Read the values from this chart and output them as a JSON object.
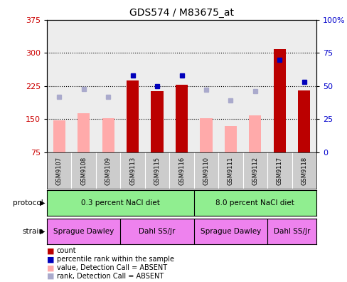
{
  "title": "GDS574 / M83675_at",
  "samples": [
    "GSM9107",
    "GSM9108",
    "GSM9109",
    "GSM9113",
    "GSM9115",
    "GSM9116",
    "GSM9110",
    "GSM9111",
    "GSM9112",
    "GSM9117",
    "GSM9118"
  ],
  "count_values": [
    null,
    null,
    null,
    237,
    213,
    228,
    null,
    null,
    null,
    308,
    215
  ],
  "count_absent": [
    147,
    163,
    152,
    null,
    null,
    null,
    152,
    135,
    158,
    null,
    null
  ],
  "rank_values": [
    null,
    null,
    null,
    58,
    50,
    58,
    null,
    null,
    null,
    70,
    53
  ],
  "rank_absent": [
    42,
    48,
    42,
    null,
    null,
    null,
    47,
    39,
    46,
    null,
    null
  ],
  "ylim_left": [
    75,
    375
  ],
  "ylim_right": [
    0,
    100
  ],
  "yticks_left": [
    75,
    150,
    225,
    300,
    375
  ],
  "yticks_right": [
    0,
    25,
    50,
    75,
    100
  ],
  "ytick_labels_right": [
    "0",
    "25",
    "50",
    "75",
    "100%"
  ],
  "grid_values": [
    150,
    225,
    300
  ],
  "bar_width": 0.5,
  "count_color": "#BB0000",
  "count_absent_color": "#FFAAAA",
  "rank_color": "#0000BB",
  "rank_absent_color": "#AAAACC",
  "bg_color": "#FFFFFF",
  "plot_bg_color": "#FFFFFF",
  "axis_color_left": "#CC0000",
  "axis_color_right": "#0000CC",
  "col_bg_color": "#CCCCCC",
  "protocol_color": "#90EE90",
  "strain_sd_color": "#EE82EE",
  "strain_dahl_color": "#EE82EE",
  "legend_items": [
    {
      "label": "count",
      "color": "#BB0000"
    },
    {
      "label": "percentile rank within the sample",
      "color": "#0000BB"
    },
    {
      "label": "value, Detection Call = ABSENT",
      "color": "#FFAAAA"
    },
    {
      "label": "rank, Detection Call = ABSENT",
      "color": "#AAAACC"
    }
  ]
}
